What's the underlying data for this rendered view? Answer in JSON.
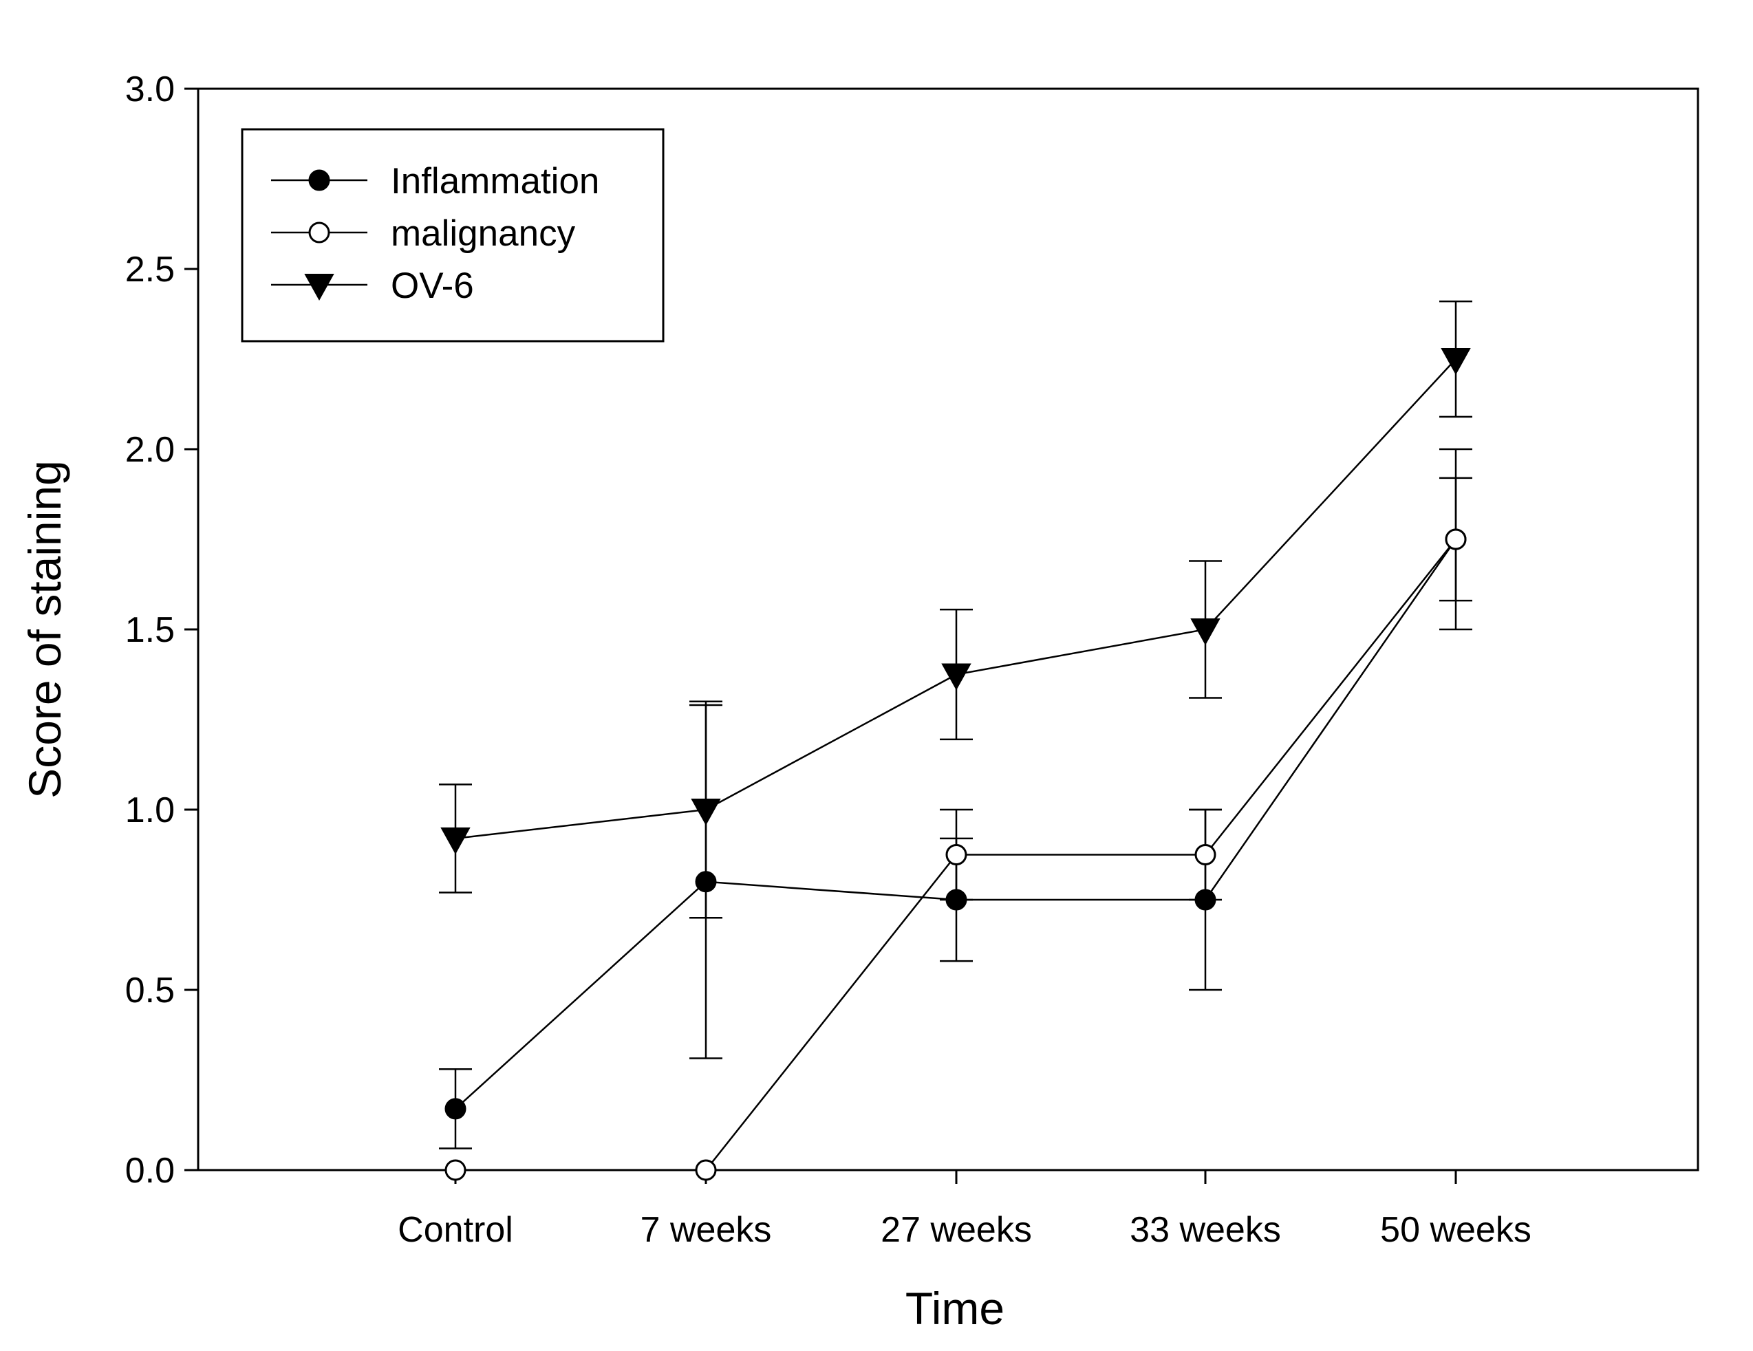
{
  "chart_data": {
    "type": "line",
    "title": "",
    "xlabel": "Time",
    "ylabel": "Score of staining",
    "categories": [
      "Control",
      "7 weeks",
      "27 weeks",
      "33 weeks",
      "50 weeks"
    ],
    "ylim": [
      0,
      3
    ],
    "yticks": [
      "0.0",
      "0.5",
      "1.0",
      "1.5",
      "2.0",
      "2.5",
      "3.0"
    ],
    "grid": false,
    "legend_position": "top-left",
    "series": [
      {
        "name": "Inflammation",
        "marker": "filled-circle",
        "values": [
          0.17,
          0.8,
          0.75,
          0.75,
          1.75
        ],
        "errors": [
          0.11,
          0.49,
          0.17,
          0.25,
          0.17
        ]
      },
      {
        "name": "malignancy",
        "marker": "open-circle",
        "values": [
          0.0,
          0.0,
          0.875,
          0.875,
          1.75
        ],
        "errors": [
          null,
          null,
          0.125,
          0.125,
          0.25
        ]
      },
      {
        "name": "OV-6",
        "marker": "filled-triangle-down",
        "values": [
          0.92,
          1.0,
          1.375,
          1.5,
          2.25
        ],
        "errors": [
          0.15,
          0.3,
          0.18,
          0.19,
          0.16
        ]
      }
    ],
    "colors": {
      "line": "#000000",
      "background": "#ffffff"
    }
  }
}
